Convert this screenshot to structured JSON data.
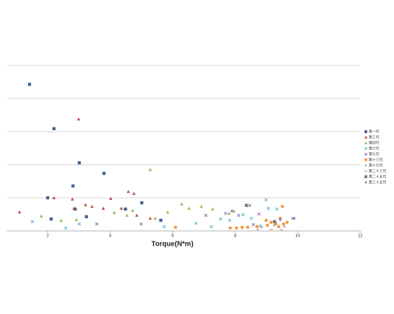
{
  "chart_data": {
    "type": "scatter",
    "x_label": "Torque(N*m)",
    "xlim": [
      0.7,
      12
    ],
    "xticks": [
      2,
      4,
      6,
      8,
      10,
      12
    ],
    "ylim": [
      0,
      5
    ],
    "yticks": [
      0,
      1,
      2,
      3,
      4,
      5
    ],
    "show_ytick_labels": false,
    "grid": true,
    "legend": "right",
    "series": [
      {
        "name": "第一代",
        "color": "#3a67a8",
        "marker": "square",
        "x": [
          1.42,
          2.2,
          3.01,
          3.8,
          2.0,
          2.81,
          2.11,
          2.88,
          3.24,
          4.49,
          5.01,
          5.62
        ],
        "values": [
          4.43,
          3.09,
          2.06,
          1.74,
          1.0,
          1.36,
          0.36,
          0.66,
          0.43,
          0.66,
          0.85,
          0.32
        ]
      },
      {
        "name": "第三代",
        "color": "#c0504d",
        "marker": "triangle",
        "x": [
          2.99,
          1.1,
          2.2,
          2.79,
          2.84,
          3.21,
          3.42,
          3.78,
          4.02,
          4.58,
          4.76,
          4.36,
          5.28,
          4.85
        ],
        "values": [
          3.38,
          0.57,
          1.0,
          0.96,
          0.68,
          0.79,
          0.74,
          0.68,
          0.98,
          1.19,
          1.13,
          0.68,
          0.38,
          0.47
        ]
      },
      {
        "name": "第四代",
        "color": "#9bbb59",
        "marker": "triangle",
        "x": [
          5.28,
          1.8,
          2.43,
          2.92,
          4.13,
          4.72,
          5.44,
          5.84,
          6.29,
          6.52,
          6.92,
          7.28,
          7.8,
          7.96,
          4.54
        ],
        "values": [
          1.85,
          0.45,
          0.32,
          0.34,
          0.55,
          0.62,
          0.38,
          0.57,
          0.81,
          0.68,
          0.74,
          0.66,
          0.53,
          0.6,
          0.47
        ]
      },
      {
        "name": "第六代",
        "color": "#4bacc6",
        "marker": "x",
        "x": [
          1.51,
          2.58,
          3.01,
          5.73,
          6.74,
          7.24,
          7.53,
          7.82,
          8.25,
          8.52,
          8.99,
          9.06,
          9.33,
          8.81
        ],
        "values": [
          0.28,
          0.09,
          0.21,
          0.13,
          0.23,
          0.13,
          0.36,
          0.32,
          0.49,
          0.38,
          0.94,
          0.68,
          0.66,
          0.15
        ]
      },
      {
        "name": "第九代",
        "color": "#8064a2",
        "marker": "x",
        "x": [
          3.57,
          4.99,
          7.06,
          7.69,
          7.89,
          8.11,
          8.47,
          8.76,
          8.58,
          9.84
        ],
        "values": [
          0.21,
          0.21,
          0.47,
          0.53,
          0.6,
          0.47,
          0.77,
          0.51,
          0.19,
          0.38
        ]
      },
      {
        "name": "第十三代",
        "color": "#f79646",
        "marker": "circle",
        "x": [
          6.09,
          7.84,
          8.04,
          8.22,
          8.4,
          8.7,
          8.99,
          9.15,
          9.3,
          9.44,
          9.51,
          9.55,
          9.03,
          9.39,
          9.66
        ],
        "values": [
          0.11,
          0.09,
          0.09,
          0.11,
          0.11,
          0.13,
          0.32,
          0.26,
          0.21,
          0.38,
          0.74,
          0.21,
          0.17,
          0.13,
          0.26
        ]
      },
      {
        "name": "第十七代",
        "color": "#a5a5a5",
        "marker": "plus",
        "x": [
          8.85,
          9.24,
          9.57,
          8.72
        ],
        "values": [
          0.11,
          0.17,
          0.13,
          0.04
        ]
      },
      {
        "name": "第二十三代",
        "color": "#d19392",
        "marker": "dash",
        "x": [
          9.15,
          9.48
        ],
        "values": [
          0.04,
          0.04
        ]
      },
      {
        "name": "第二十五代",
        "color": "#7f7f7f",
        "marker": "square",
        "x": [
          8.36,
          9.26
        ],
        "values": [
          0.77,
          0.28
        ]
      },
      {
        "name": "第三十五代",
        "color": "#8d81b6",
        "marker": "diamond",
        "x": [
          9.89,
          9.44
        ],
        "values": [
          0.38,
          0.34
        ]
      }
    ]
  }
}
